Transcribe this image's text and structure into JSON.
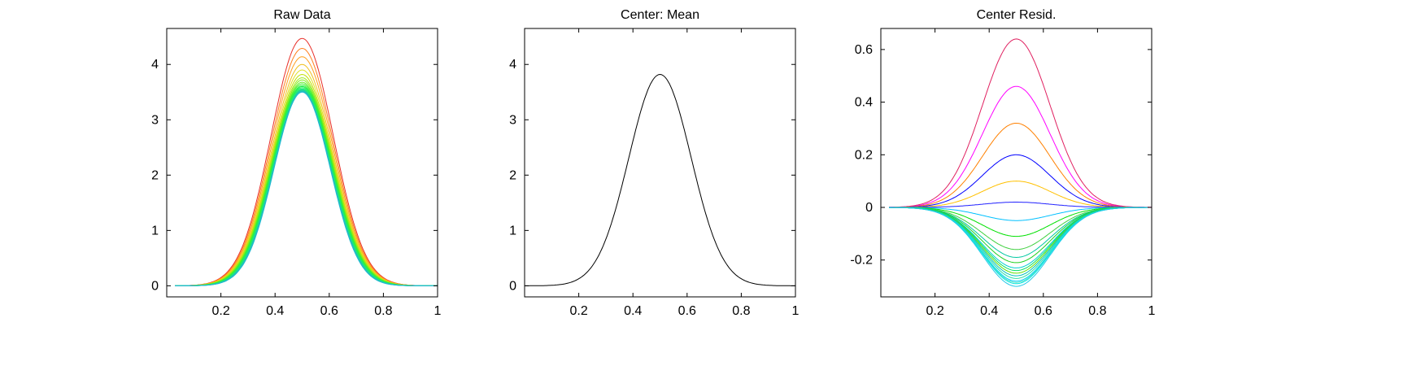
{
  "chart_data": [
    {
      "type": "line",
      "title": "Raw Data",
      "xlim": [
        0,
        1
      ],
      "ylim": [
        -0.2,
        4.65
      ],
      "xticks": [
        "0.2",
        "0.4",
        "0.6",
        "0.8",
        "1"
      ],
      "yticks": [
        "0",
        "1",
        "2",
        "3",
        "4"
      ],
      "grid": false,
      "legend": "none",
      "center_x": 0.5,
      "curve_count": 20,
      "peak_values": [
        4.47,
        4.29,
        4.14,
        4.0,
        3.9,
        3.82,
        3.76,
        3.72,
        3.68,
        3.65,
        3.62,
        3.6,
        3.58,
        3.56,
        3.55,
        3.54,
        3.53,
        3.52,
        3.51,
        3.5
      ],
      "colors": [
        "#e8302a",
        "#ff7f1e",
        "#ffa020",
        "#f0c020",
        "#e0e020",
        "#c0e000",
        "#a0e820",
        "#80ee20",
        "#60f020",
        "#40f030",
        "#30f040",
        "#20f050",
        "#20f060",
        "#20f070",
        "#20e080",
        "#20d890",
        "#20d0a0",
        "#20c8b0",
        "#20c0c0",
        "#20b8d0"
      ]
    },
    {
      "type": "line",
      "title": "Center: Mean",
      "xlim": [
        0,
        1
      ],
      "ylim": [
        -0.2,
        4.65
      ],
      "xticks": [
        "0.2",
        "0.4",
        "0.6",
        "0.8",
        "1"
      ],
      "yticks": [
        "0",
        "1",
        "2",
        "3",
        "4"
      ],
      "grid": false,
      "legend": "none",
      "x": [
        0,
        0.1,
        0.2,
        0.25,
        0.3,
        0.35,
        0.4,
        0.45,
        0.5,
        0.55,
        0.6,
        0.65,
        0.7,
        0.75,
        0.8,
        0.9,
        1.0
      ],
      "y": [
        0,
        0.0,
        0.08,
        0.25,
        0.63,
        1.3,
        2.2,
        3.2,
        3.82,
        3.2,
        2.2,
        1.3,
        0.63,
        0.25,
        0.08,
        0.0,
        0
      ],
      "color": "#000000"
    },
    {
      "type": "line",
      "title": "Center Resid.",
      "xlim": [
        0,
        1
      ],
      "ylim": [
        -0.34,
        0.68
      ],
      "xticks": [
        "0.2",
        "0.4",
        "0.6",
        "0.8",
        "1"
      ],
      "yticks": [
        "-0.2",
        "0",
        "0.2",
        "0.4",
        "0.6"
      ],
      "grid": false,
      "legend": "none",
      "center_x": 0.5,
      "curve_count": 20,
      "peak_values": [
        0.64,
        0.46,
        0.32,
        0.2,
        0.1,
        0.02,
        -0.05,
        -0.11,
        -0.16,
        -0.19,
        -0.21,
        -0.23,
        -0.24,
        -0.25,
        -0.26,
        -0.27,
        -0.28,
        -0.285,
        -0.29,
        -0.3
      ],
      "colors": [
        "#e02060",
        "#ff00ff",
        "#ff8000",
        "#0000ff",
        "#ffc000",
        "#2020ff",
        "#00c0ff",
        "#00e000",
        "#40d040",
        "#00c8a0",
        "#20d020",
        "#00d0d0",
        "#00e060",
        "#60e000",
        "#00c0c0",
        "#20e0a0",
        "#00d0ff",
        "#40e0c0",
        "#00e8e0",
        "#20c8e8"
      ]
    }
  ]
}
